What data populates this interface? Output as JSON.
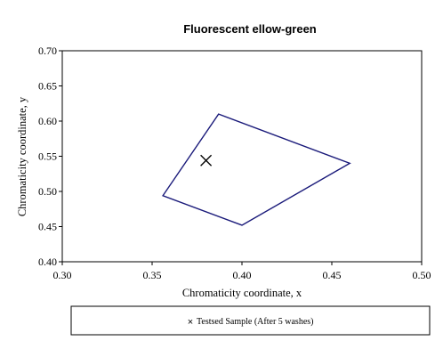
{
  "chart_data": {
    "type": "scatter",
    "title": "Fluorescent    ellow-green",
    "xlabel": "Chromaticity coordinate, x",
    "ylabel": "Chromaticity coordinate, y",
    "xlim": [
      0.3,
      0.5
    ],
    "ylim": [
      0.4,
      0.7
    ],
    "x_ticks": [
      "0.30",
      "0.35",
      "0.40",
      "0.45",
      "0.50"
    ],
    "y_ticks": [
      "0.40",
      "0.45",
      "0.50",
      "0.55",
      "0.60",
      "0.65",
      "0.70"
    ],
    "grid": false,
    "legend_position": "bottom",
    "boundary": {
      "color": "#1a1a7a",
      "points": [
        {
          "x": 0.387,
          "y": 0.61
        },
        {
          "x": 0.46,
          "y": 0.54
        },
        {
          "x": 0.4,
          "y": 0.452
        },
        {
          "x": 0.356,
          "y": 0.494
        }
      ]
    },
    "series": [
      {
        "name": "Testsed Sample (After 5 washes)",
        "marker": "x",
        "color": "#000000",
        "points": [
          {
            "x": 0.38,
            "y": 0.544
          }
        ]
      }
    ]
  }
}
